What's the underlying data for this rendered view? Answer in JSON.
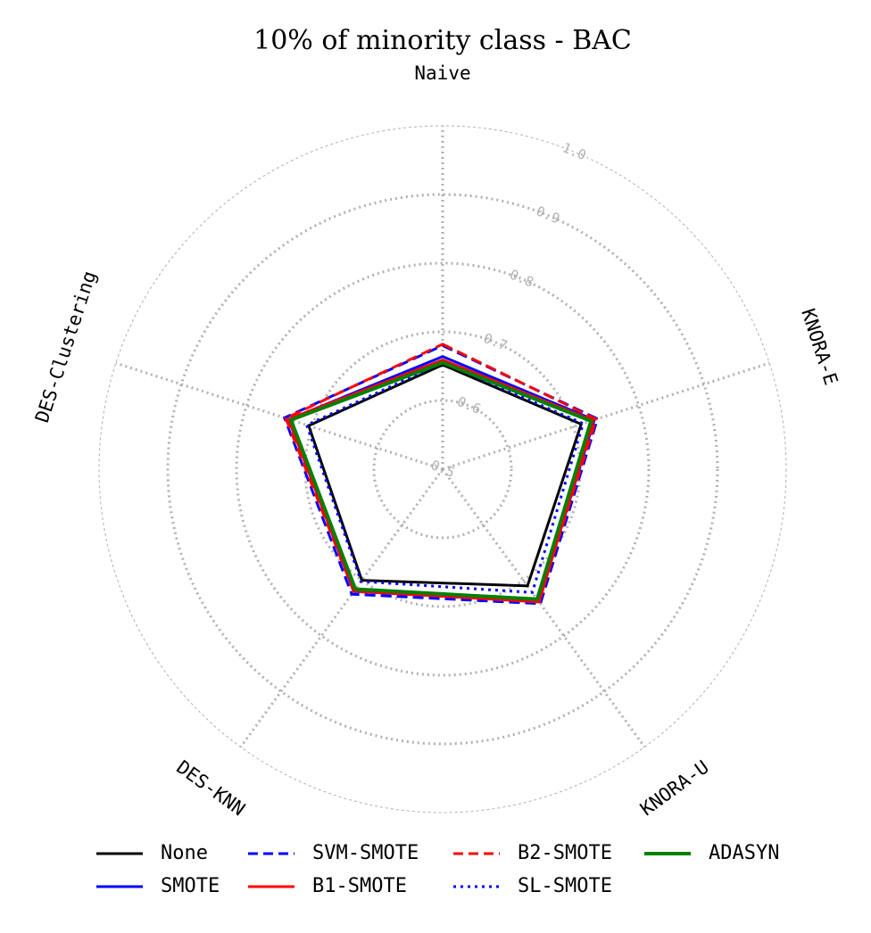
{
  "chart_data": {
    "type": "radar",
    "title": "10% of minority class - BAC",
    "axes": [
      "Naive",
      "KNORA-E",
      "KNORA-U",
      "DES-KNN",
      "DES-Clustering"
    ],
    "r_range": [
      0.5,
      1.0
    ],
    "r_ticks": [
      "0.5",
      "0.6",
      "0.7",
      "0.8",
      "0.9",
      "1.0"
    ],
    "grid": true,
    "legend_position": "bottom",
    "series": [
      {
        "name": "None",
        "color": "#000000",
        "dash": "solid",
        "width": 3,
        "values": [
          0.652,
          0.712,
          0.71,
          0.7,
          0.705
        ]
      },
      {
        "name": "SMOTE",
        "color": "#0000ff",
        "dash": "solid",
        "width": 3,
        "values": [
          0.664,
          0.732,
          0.738,
          0.72,
          0.735
        ]
      },
      {
        "name": "SVM-SMOTE",
        "color": "#0000ff",
        "dash": "dashed",
        "width": 3,
        "values": [
          0.68,
          0.737,
          0.742,
          0.725,
          0.742
        ]
      },
      {
        "name": "B1-SMOTE",
        "color": "#ff0000",
        "dash": "solid",
        "width": 3,
        "values": [
          0.659,
          0.73,
          0.739,
          0.719,
          0.736
        ]
      },
      {
        "name": "B2-SMOTE",
        "color": "#ff0000",
        "dash": "dashed",
        "width": 3,
        "values": [
          0.682,
          0.735,
          0.738,
          0.72,
          0.74
        ]
      },
      {
        "name": "SL-SMOTE",
        "color": "#0000ff",
        "dash": "dotted",
        "width": 3,
        "values": [
          0.655,
          0.715,
          0.722,
          0.702,
          0.708
        ]
      },
      {
        "name": "ADASYN",
        "color": "#008000",
        "dash": "solid",
        "width": 4,
        "values": [
          0.655,
          0.727,
          0.734,
          0.716,
          0.732
        ]
      }
    ]
  }
}
